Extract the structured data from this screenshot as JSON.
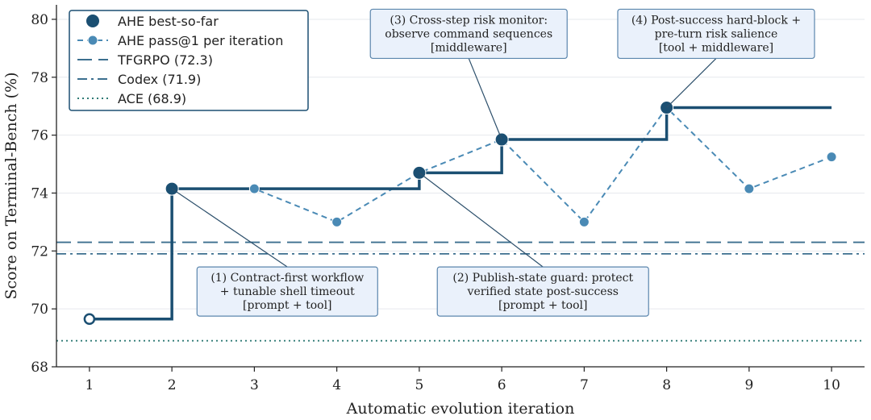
{
  "chart_data": {
    "type": "line",
    "xlabel": "Automatic evolution iteration",
    "ylabel": "Score on Terminal-Bench (%)",
    "xlim": [
      0.6,
      10.4
    ],
    "ylim": [
      68,
      80.5
    ],
    "xticks": [
      1,
      2,
      3,
      4,
      5,
      6,
      7,
      8,
      9,
      10
    ],
    "yticks": [
      68,
      70,
      72,
      74,
      76,
      78,
      80
    ],
    "grid": "horizontal",
    "legend_position": "top-left",
    "series": [
      {
        "name": "AHE best-so-far",
        "style": "step",
        "color": "#1b4f72",
        "x": [
          1,
          2,
          3,
          4,
          5,
          6,
          7,
          8,
          9,
          10
        ],
        "values": [
          69.65,
          74.15,
          74.15,
          74.15,
          74.7,
          75.85,
          75.85,
          76.95,
          76.95,
          76.95
        ],
        "markers_at": [
          2,
          5,
          6,
          8
        ],
        "start_marker": 1
      },
      {
        "name": "AHE pass@1 per iteration",
        "style": "dashed-line-markers",
        "color": "#4a8ab5",
        "x": [
          3,
          4,
          5,
          6,
          7,
          8,
          9,
          10
        ],
        "values": [
          74.15,
          73.0,
          74.7,
          75.85,
          73.0,
          76.95,
          74.15,
          75.25
        ]
      }
    ],
    "reference_lines": [
      {
        "name": "TFGRPO (72.3)",
        "value": 72.3,
        "style": "dashed",
        "color": "#3c6f8f"
      },
      {
        "name": "Codex (71.9)",
        "value": 71.9,
        "style": "dashdot",
        "color": "#3c6f8f"
      },
      {
        "name": "ACE (68.9)",
        "value": 68.9,
        "style": "dotted",
        "color": "#2f7a75"
      }
    ],
    "annotations": [
      {
        "lines": [
          "(1) Contract-first workflow",
          "+ tunable shell timeout",
          "[prompt + tool]"
        ],
        "target": [
          2,
          74.15
        ],
        "anchor": [
          3.4,
          70.6
        ]
      },
      {
        "lines": [
          "(2) Publish-state guard: protect",
          "verified state post-success",
          "[prompt + tool]"
        ],
        "target": [
          5,
          74.7
        ],
        "anchor": [
          6.5,
          70.6
        ]
      },
      {
        "lines": [
          "(3) Cross-step risk monitor:",
          "observe command sequences",
          "[middleware]"
        ],
        "target": [
          6,
          75.85
        ],
        "anchor": [
          5.6,
          79.5
        ]
      },
      {
        "lines": [
          "(4) Post-success hard-block +",
          "pre-turn risk salience",
          "[tool + middleware]"
        ],
        "target": [
          8,
          76.95
        ],
        "anchor": [
          8.6,
          79.5
        ]
      }
    ]
  }
}
